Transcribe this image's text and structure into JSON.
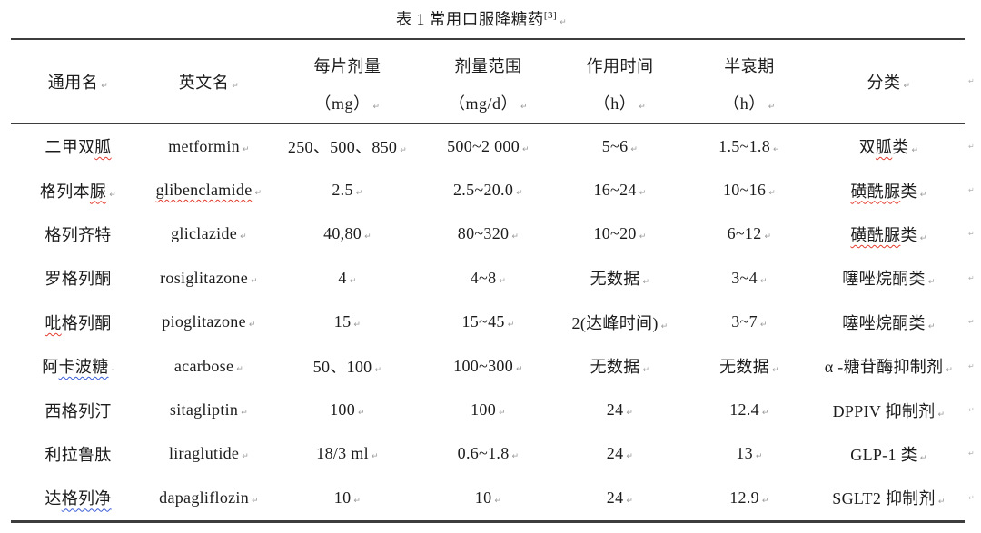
{
  "document": {
    "title": "表 1 常用口服降糖药",
    "title_ref": "[3]"
  },
  "glyphs": {
    "cell_end_mark": "↵",
    "space_mark": "·",
    "row_end_mark": "↵"
  },
  "colors": {
    "text": "#1c1c1c",
    "rule": "#3d3d3d",
    "mark": "#9b9b9b",
    "spell_red": "#e23b2e",
    "spell_blue": "#3a5bd7"
  },
  "table": {
    "columns": [
      {
        "id": "generic-name",
        "label": "通用名"
      },
      {
        "id": "english-name",
        "label": "英文名"
      },
      {
        "id": "dose-per-tablet",
        "label": "每片剂量",
        "unit": "（mg）"
      },
      {
        "id": "dose-range",
        "label": "剂量范围",
        "unit": "（mg/d）"
      },
      {
        "id": "action-time",
        "label": "作用时间",
        "unit": "（h）"
      },
      {
        "id": "half-life",
        "label": "半衰期",
        "unit": "（h）"
      },
      {
        "id": "classification",
        "label": "分类"
      }
    ],
    "rows": [
      [
        {
          "parts": [
            [
              "二甲双",
              ""
            ],
            [
              "胍",
              "red"
            ]
          ],
          "mark": ""
        },
        {
          "parts": [
            [
              "metformin",
              ""
            ]
          ],
          "mark": "end"
        },
        {
          "parts": [
            [
              "250、500、850",
              ""
            ]
          ],
          "mark": "end"
        },
        {
          "parts": [
            [
              "500~2 000",
              ""
            ]
          ],
          "mark": "end"
        },
        {
          "parts": [
            [
              "5~6",
              ""
            ]
          ],
          "mark": "end"
        },
        {
          "parts": [
            [
              "1.5~1.8",
              ""
            ]
          ],
          "mark": "end"
        },
        {
          "parts": [
            [
              "双",
              ""
            ],
            [
              "胍",
              "red"
            ],
            [
              "类",
              ""
            ]
          ],
          "mark": "end"
        }
      ],
      [
        {
          "parts": [
            [
              "格列本",
              ""
            ],
            [
              "脲",
              "red"
            ]
          ],
          "mark": "end"
        },
        {
          "parts": [
            [
              "glibenclamide",
              "red"
            ]
          ],
          "mark": "end"
        },
        {
          "parts": [
            [
              "2.5",
              ""
            ]
          ],
          "mark": "end"
        },
        {
          "parts": [
            [
              "2.5~20.0",
              ""
            ]
          ],
          "mark": "end"
        },
        {
          "parts": [
            [
              "16~24",
              ""
            ]
          ],
          "mark": "end"
        },
        {
          "parts": [
            [
              "10~16",
              ""
            ]
          ],
          "mark": "end"
        },
        {
          "parts": [
            [
              "磺酰脲",
              "red"
            ],
            [
              "类",
              ""
            ]
          ],
          "mark": "end"
        }
      ],
      [
        {
          "parts": [
            [
              "格列齐特",
              ""
            ]
          ],
          "mark": ""
        },
        {
          "parts": [
            [
              "gliclazide",
              ""
            ]
          ],
          "mark": "end"
        },
        {
          "parts": [
            [
              "40,80",
              ""
            ]
          ],
          "mark": "end"
        },
        {
          "parts": [
            [
              "80~320",
              ""
            ]
          ],
          "mark": "end"
        },
        {
          "parts": [
            [
              "10~20",
              ""
            ]
          ],
          "mark": "end"
        },
        {
          "parts": [
            [
              "6~12",
              ""
            ]
          ],
          "mark": "end"
        },
        {
          "parts": [
            [
              "磺酰脲",
              "red"
            ],
            [
              "类",
              ""
            ]
          ],
          "mark": "end"
        }
      ],
      [
        {
          "parts": [
            [
              "罗格列酮",
              ""
            ]
          ],
          "mark": ""
        },
        {
          "parts": [
            [
              "rosiglitazone",
              ""
            ]
          ],
          "mark": "end"
        },
        {
          "parts": [
            [
              "4",
              ""
            ]
          ],
          "mark": "end"
        },
        {
          "parts": [
            [
              "4~8",
              ""
            ]
          ],
          "mark": "end"
        },
        {
          "parts": [
            [
              "无数据",
              ""
            ]
          ],
          "mark": "end"
        },
        {
          "parts": [
            [
              "3~4",
              ""
            ]
          ],
          "mark": "end"
        },
        {
          "parts": [
            [
              "噻唑烷酮类",
              ""
            ]
          ],
          "mark": "end"
        }
      ],
      [
        {
          "parts": [
            [
              "吡",
              "red"
            ],
            [
              "格列酮",
              ""
            ]
          ],
          "mark": ""
        },
        {
          "parts": [
            [
              "pioglitazone",
              ""
            ]
          ],
          "mark": "end"
        },
        {
          "parts": [
            [
              "15",
              ""
            ]
          ],
          "mark": "end"
        },
        {
          "parts": [
            [
              "15~45",
              ""
            ]
          ],
          "mark": "end"
        },
        {
          "parts": [
            [
              "2(达峰时间)",
              ""
            ]
          ],
          "mark": "end"
        },
        {
          "parts": [
            [
              "3~7",
              ""
            ]
          ],
          "mark": "end"
        },
        {
          "parts": [
            [
              "噻唑烷酮类",
              ""
            ]
          ],
          "mark": "end"
        }
      ],
      [
        {
          "parts": [
            [
              "阿",
              ""
            ],
            [
              "卡波糖",
              "blue"
            ]
          ],
          "mark": "space"
        },
        {
          "parts": [
            [
              "acarbose",
              ""
            ]
          ],
          "mark": "end"
        },
        {
          "parts": [
            [
              "50、100",
              ""
            ]
          ],
          "mark": "end"
        },
        {
          "parts": [
            [
              "100~300",
              ""
            ]
          ],
          "mark": "end"
        },
        {
          "parts": [
            [
              "无数据",
              ""
            ]
          ],
          "mark": "end"
        },
        {
          "parts": [
            [
              "无数据",
              ""
            ]
          ],
          "mark": "end"
        },
        {
          "parts": [
            [
              "α -糖苷酶抑制剂",
              ""
            ]
          ],
          "mark": "end"
        }
      ],
      [
        {
          "parts": [
            [
              "西格列汀",
              ""
            ]
          ],
          "mark": ""
        },
        {
          "parts": [
            [
              "sitagliptin",
              ""
            ]
          ],
          "mark": "end"
        },
        {
          "parts": [
            [
              "100",
              ""
            ]
          ],
          "mark": "end"
        },
        {
          "parts": [
            [
              "100",
              ""
            ]
          ],
          "mark": "end"
        },
        {
          "parts": [
            [
              "24",
              ""
            ]
          ],
          "mark": "end"
        },
        {
          "parts": [
            [
              "12.4",
              ""
            ]
          ],
          "mark": "end"
        },
        {
          "parts": [
            [
              "DPPIV 抑制剂",
              ""
            ]
          ],
          "mark": "end"
        }
      ],
      [
        {
          "parts": [
            [
              "利拉鲁肽",
              ""
            ]
          ],
          "mark": ""
        },
        {
          "parts": [
            [
              "liraglutide",
              ""
            ]
          ],
          "mark": "end"
        },
        {
          "parts": [
            [
              "18/3 ml",
              ""
            ]
          ],
          "mark": "end"
        },
        {
          "parts": [
            [
              "0.6~1.8",
              ""
            ]
          ],
          "mark": "end"
        },
        {
          "parts": [
            [
              "24",
              ""
            ]
          ],
          "mark": "end"
        },
        {
          "parts": [
            [
              "13",
              ""
            ]
          ],
          "mark": "end"
        },
        {
          "parts": [
            [
              "GLP-1 类",
              ""
            ]
          ],
          "mark": "end"
        }
      ],
      [
        {
          "parts": [
            [
              "达",
              ""
            ],
            [
              "格列净",
              "blue"
            ]
          ],
          "mark": ""
        },
        {
          "parts": [
            [
              "dapagliflozin",
              ""
            ]
          ],
          "mark": "end"
        },
        {
          "parts": [
            [
              "10",
              ""
            ]
          ],
          "mark": "end"
        },
        {
          "parts": [
            [
              "10",
              ""
            ]
          ],
          "mark": "end"
        },
        {
          "parts": [
            [
              "24",
              ""
            ]
          ],
          "mark": "end"
        },
        {
          "parts": [
            [
              "12.9",
              ""
            ]
          ],
          "mark": "end"
        },
        {
          "parts": [
            [
              "SGLT2 抑制剂",
              ""
            ]
          ],
          "mark": "end"
        }
      ]
    ]
  }
}
